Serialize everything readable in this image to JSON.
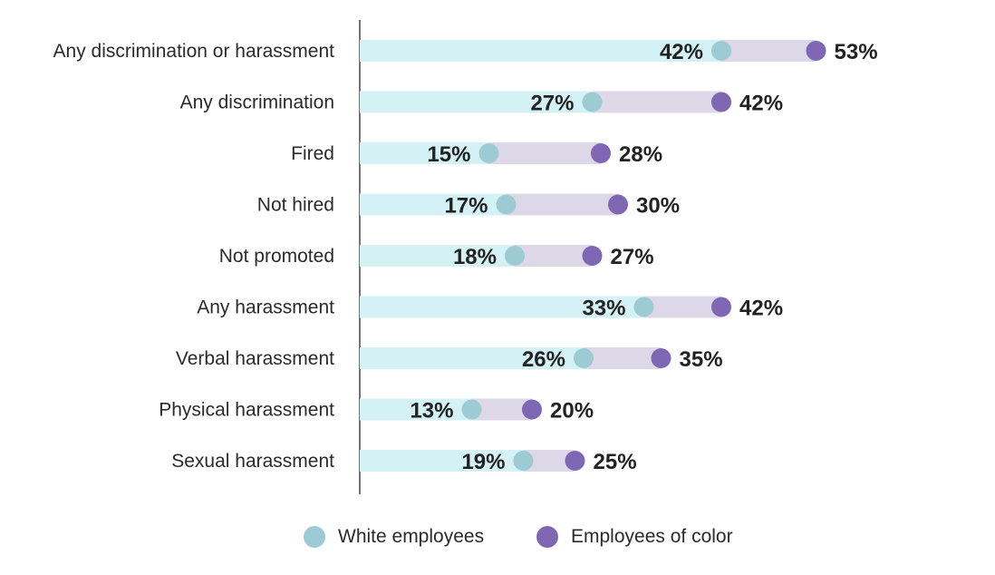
{
  "chart_data": {
    "type": "dumbbell",
    "unit": "%",
    "categories": [
      "Any discrimination or harassment",
      "Any discrimination",
      "Fired",
      "Not hired",
      "Not promoted",
      "Any harassment",
      "Verbal harassment",
      "Physical harassment",
      "Sexual harassment"
    ],
    "series": [
      {
        "name": "White employees",
        "values": [
          42,
          27,
          15,
          17,
          18,
          33,
          26,
          13,
          19
        ]
      },
      {
        "name": "Employees of color",
        "values": [
          53,
          42,
          28,
          30,
          27,
          42,
          35,
          20,
          25
        ]
      }
    ],
    "xlim": [
      0,
      60
    ],
    "grid": false,
    "legend_position": "bottom"
  },
  "colors": {
    "white_dot": "#9ccbd3",
    "color_dot": "#7f67b4",
    "white_bar": "#d4f1f5",
    "gap_bar": "#dcd8e8",
    "axis": "#444444"
  },
  "legend": {
    "white_label": "White employees",
    "color_label": "Employees of color"
  }
}
